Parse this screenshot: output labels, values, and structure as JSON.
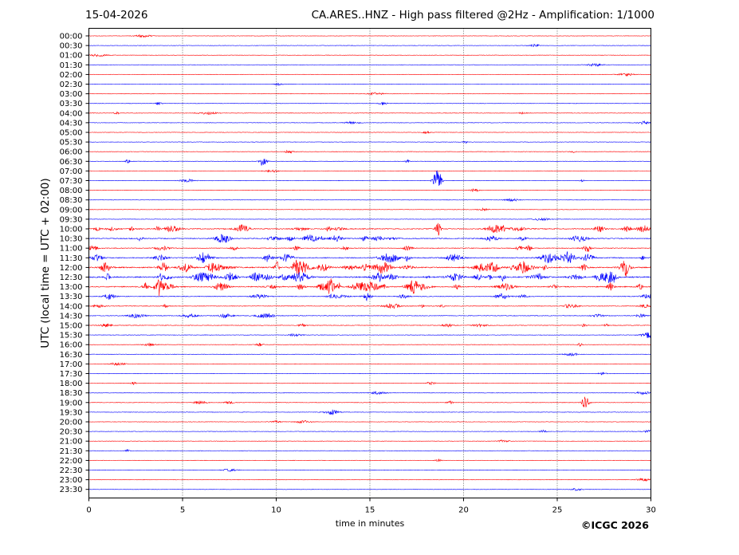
{
  "header": {
    "date": "15-04-2026",
    "title": "CA.ARES..HNZ - High pass filtered @2Hz - Amplification: 1/1000"
  },
  "footer": {
    "copyright": "©ICGC 2026"
  },
  "chart_data": {
    "type": "line",
    "title": "CA.ARES..HNZ - High pass filtered @2Hz - Amplification: 1/1000",
    "xlabel": "time in minutes",
    "ylabel": "UTC (local time = UTC + 02:00)",
    "xlim": [
      0,
      30
    ],
    "x_ticks": [
      0,
      5,
      10,
      15,
      20,
      25,
      30
    ],
    "grid": "vertical dotted at 5-minute ticks",
    "trace_colors": [
      "#ff0000",
      "#0000ff"
    ],
    "rows": [
      {
        "label": "00:00",
        "activity": 0.02
      },
      {
        "label": "00:30",
        "activity": 0.02
      },
      {
        "label": "01:00",
        "activity": 0.02
      },
      {
        "label": "01:30",
        "activity": 0.02
      },
      {
        "label": "02:00",
        "activity": 0.02
      },
      {
        "label": "02:30",
        "activity": 0.02
      },
      {
        "label": "03:00",
        "activity": 0.02
      },
      {
        "label": "03:30",
        "activity": 0.05
      },
      {
        "label": "04:00",
        "activity": 0.08
      },
      {
        "label": "04:30",
        "activity": 0.04
      },
      {
        "label": "05:00",
        "activity": 0.03
      },
      {
        "label": "05:30",
        "activity": 0.02
      },
      {
        "label": "06:00",
        "activity": 0.06
      },
      {
        "label": "06:30",
        "activity": 0.05
      },
      {
        "label": "07:00",
        "activity": 0.02
      },
      {
        "label": "07:30",
        "activity": 0.04
      },
      {
        "label": "08:00",
        "activity": 0.02
      },
      {
        "label": "08:30",
        "activity": 0.02
      },
      {
        "label": "09:00",
        "activity": 0.02
      },
      {
        "label": "09:30",
        "activity": 0.02
      },
      {
        "label": "10:00",
        "activity": 0.45
      },
      {
        "label": "10:30",
        "activity": 0.4
      },
      {
        "label": "11:00",
        "activity": 0.25
      },
      {
        "label": "11:30",
        "activity": 0.45
      },
      {
        "label": "12:00",
        "activity": 0.65
      },
      {
        "label": "12:30",
        "activity": 0.7
      },
      {
        "label": "13:00",
        "activity": 0.55
      },
      {
        "label": "13:30",
        "activity": 0.25
      },
      {
        "label": "14:00",
        "activity": 0.2
      },
      {
        "label": "14:30",
        "activity": 0.18
      },
      {
        "label": "15:00",
        "activity": 0.16
      },
      {
        "label": "15:30",
        "activity": 0.08
      },
      {
        "label": "16:00",
        "activity": 0.08
      },
      {
        "label": "16:30",
        "activity": 0.03
      },
      {
        "label": "17:00",
        "activity": 0.03
      },
      {
        "label": "17:30",
        "activity": 0.03
      },
      {
        "label": "18:00",
        "activity": 0.06
      },
      {
        "label": "18:30",
        "activity": 0.06
      },
      {
        "label": "19:00",
        "activity": 0.07
      },
      {
        "label": "19:30",
        "activity": 0.06
      },
      {
        "label": "20:00",
        "activity": 0.05
      },
      {
        "label": "20:30",
        "activity": 0.04
      },
      {
        "label": "21:00",
        "activity": 0.02
      },
      {
        "label": "21:30",
        "activity": 0.02
      },
      {
        "label": "22:00",
        "activity": 0.02
      },
      {
        "label": "22:30",
        "activity": 0.02
      },
      {
        "label": "23:00",
        "activity": 0.02
      },
      {
        "label": "23:30",
        "activity": 0.02
      }
    ],
    "events": [
      {
        "row": "06:30",
        "minute": 9.3,
        "amplitude": 6
      },
      {
        "row": "07:30",
        "minute": 18.6,
        "amplitude": 22
      },
      {
        "row": "13:00",
        "minute": 12.9,
        "amplitude": 12
      },
      {
        "row": "19:00",
        "minute": 26.5,
        "amplitude": 9
      }
    ]
  }
}
